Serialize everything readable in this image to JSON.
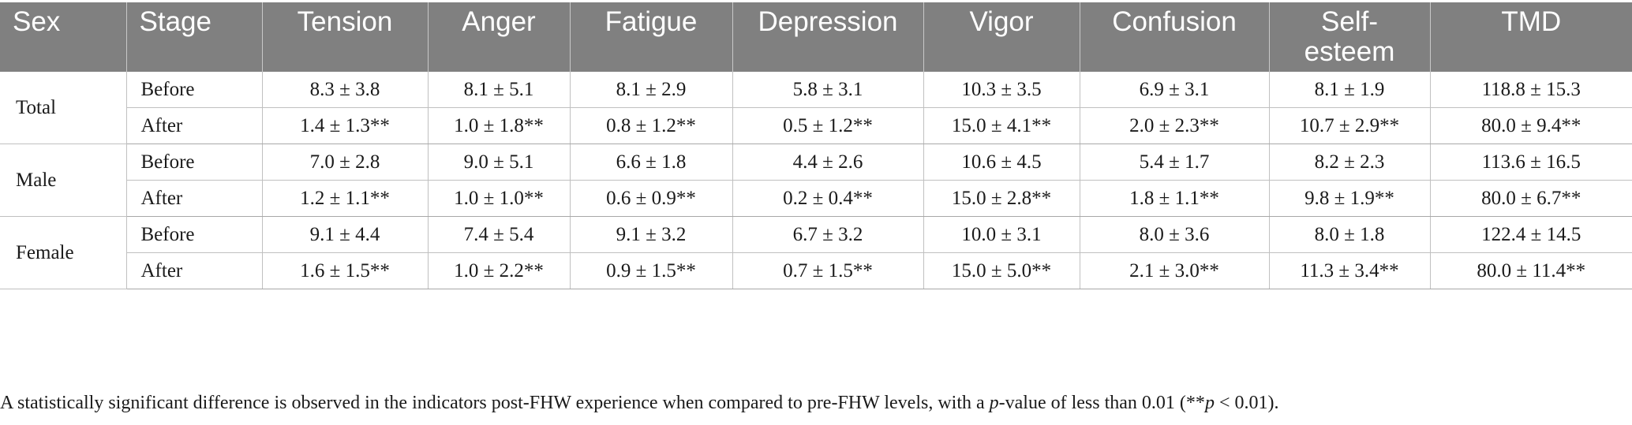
{
  "table": {
    "headers": [
      "Sex",
      "Stage",
      "Tension",
      "Anger",
      "Fatigue",
      "Depression",
      "Vigor",
      "Confusion",
      "Self-\nesteem",
      "TMD"
    ],
    "groups": [
      {
        "sex": "Total",
        "rows": [
          {
            "stage": "Before",
            "values": [
              "8.3 ± 3.8",
              "8.1 ± 5.1",
              "8.1 ± 2.9",
              "5.8 ± 3.1",
              "10.3 ± 3.5",
              "6.9 ± 3.1",
              "8.1 ± 1.9",
              "118.8 ± 15.3"
            ]
          },
          {
            "stage": "After",
            "values": [
              "1.4 ± 1.3**",
              "1.0 ± 1.8**",
              "0.8 ± 1.2**",
              "0.5 ± 1.2**",
              "15.0 ± 4.1**",
              "2.0 ± 2.3**",
              "10.7 ± 2.9**",
              "80.0 ± 9.4**"
            ]
          }
        ]
      },
      {
        "sex": "Male",
        "rows": [
          {
            "stage": "Before",
            "values": [
              "7.0 ± 2.8",
              "9.0 ± 5.1",
              "6.6 ± 1.8",
              "4.4 ± 2.6",
              "10.6 ± 4.5",
              "5.4 ± 1.7",
              "8.2 ± 2.3",
              "113.6 ± 16.5"
            ]
          },
          {
            "stage": "After",
            "values": [
              "1.2 ± 1.1**",
              "1.0 ± 1.0**",
              "0.6 ± 0.9**",
              "0.2 ± 0.4**",
              "15.0 ± 2.8**",
              "1.8 ± 1.1**",
              "9.8 ± 1.9**",
              "80.0 ± 6.7**"
            ]
          }
        ]
      },
      {
        "sex": "Female",
        "rows": [
          {
            "stage": "Before",
            "values": [
              "9.1 ± 4.4",
              "7.4 ± 5.4",
              "9.1 ± 3.2",
              "6.7 ± 3.2",
              "10.0 ± 3.1",
              "8.0 ± 3.6",
              "8.0 ± 1.8",
              "122.4 ± 14.5"
            ]
          },
          {
            "stage": "After",
            "values": [
              "1.6 ± 1.5**",
              "1.0 ± 2.2**",
              "0.9 ± 1.5**",
              "0.7 ± 1.5**",
              "15.0 ± 5.0**",
              "2.1 ± 3.0**",
              "11.3 ± 3.4**",
              "80.0 ± 11.4**"
            ]
          }
        ]
      }
    ]
  },
  "footnote": {
    "part1": "A statistically significant difference is observed in the indicators post-FHW experience when compared to pre-FHW levels, with a ",
    "p1": "p",
    "part2": "-value of less than 0.01 (**",
    "p2": "p",
    "part3": " < 0.01)."
  }
}
